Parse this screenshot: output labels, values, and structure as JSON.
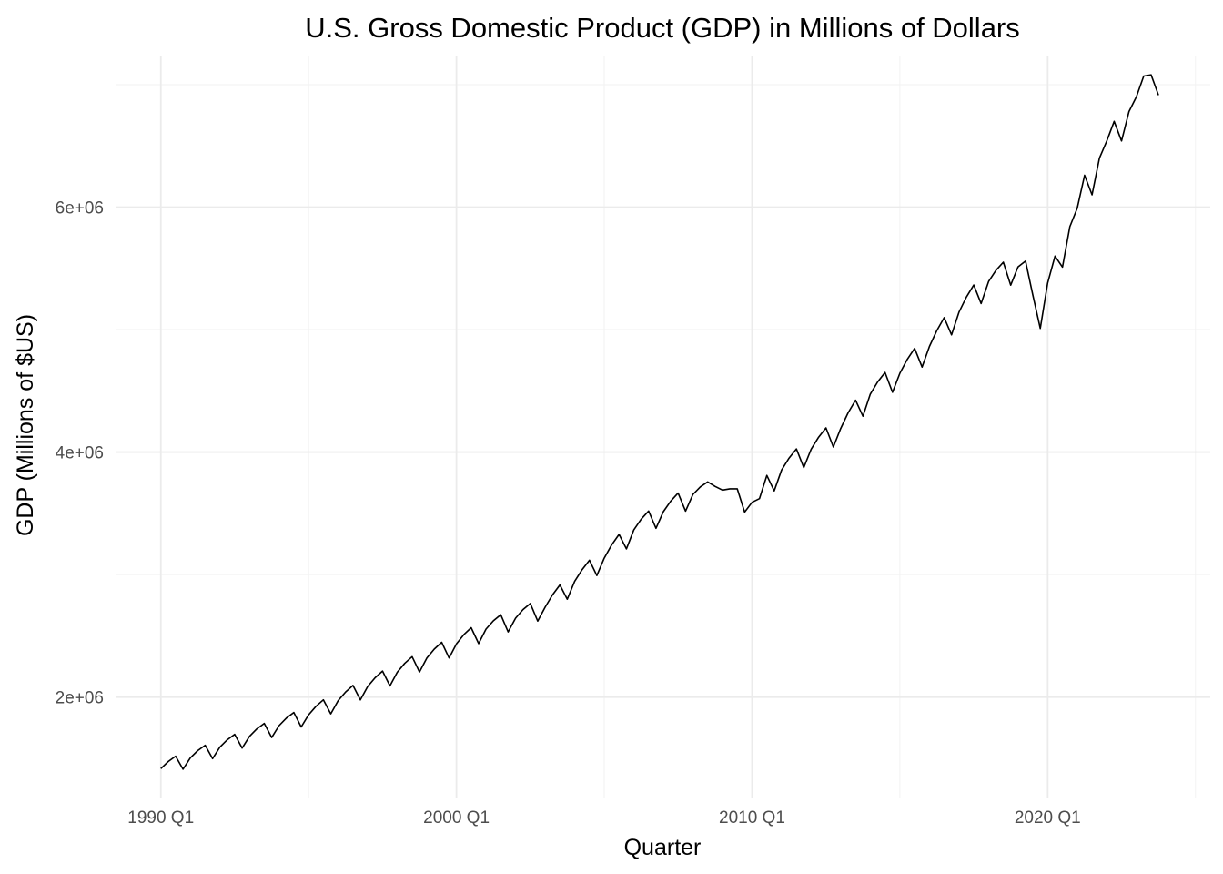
{
  "chart_data": {
    "type": "line",
    "title": "U.S. Gross Domestic Product (GDP) in Millions of Dollars",
    "xlabel": "Quarter",
    "ylabel": "GDP (Millions of $US)",
    "x_ticks": [
      "1990 Q1",
      "2000 Q1",
      "2010 Q1",
      "2020 Q1"
    ],
    "y_ticks": [
      "2e+06",
      "4e+06",
      "6e+06"
    ],
    "grid": true,
    "legend": "none",
    "line_color": "#000000",
    "x_range": [
      "1988 Q3",
      "2025 Q3"
    ],
    "ylim": [
      1180000,
      7230000
    ],
    "x_start": "1990 Q1",
    "x_end": "2023 Q4",
    "y_anchors": [
      [
        0,
        1420000
      ],
      [
        20,
        1860000
      ],
      [
        40,
        2440000
      ],
      [
        44,
        2560000
      ],
      [
        48,
        2650000
      ],
      [
        52,
        2740000
      ],
      [
        56,
        2950000
      ],
      [
        60,
        3140000
      ],
      [
        64,
        3370000
      ],
      [
        68,
        3520000
      ],
      [
        72,
        3660000
      ],
      [
        76,
        3700000
      ],
      [
        80,
        3600000
      ],
      [
        84,
        3860000
      ],
      [
        88,
        4030000
      ],
      [
        92,
        4200000
      ],
      [
        96,
        4480000
      ],
      [
        100,
        4650000
      ],
      [
        104,
        4870000
      ],
      [
        108,
        5150000
      ],
      [
        112,
        5400000
      ],
      [
        116,
        5520000
      ],
      [
        120,
        5700000
      ],
      [
        124,
        6200000
      ],
      [
        128,
        6650000
      ],
      [
        132,
        6850000
      ],
      [
        135,
        7050000
      ]
    ],
    "seasonal_pattern": [
      -6000,
      45000,
      75000,
      -105000
    ],
    "overrides": [
      [
        75,
        3720000
      ],
      [
        76,
        3690000
      ],
      [
        77,
        3700000
      ],
      [
        78,
        3700000
      ],
      [
        79,
        3510000
      ],
      [
        80,
        3590000
      ],
      [
        81,
        3620000
      ],
      [
        117,
        5560000
      ],
      [
        118,
        5280000
      ],
      [
        119,
        5010000
      ],
      [
        120,
        5380000
      ],
      [
        121,
        5600000
      ],
      [
        122,
        5510000
      ],
      [
        123,
        5840000
      ],
      [
        124,
        5990000
      ],
      [
        125,
        6260000
      ],
      [
        126,
        6100000
      ],
      [
        127,
        6400000
      ],
      [
        128,
        6540000
      ],
      [
        129,
        6700000
      ],
      [
        130,
        6540000
      ],
      [
        131,
        6780000
      ],
      [
        132,
        6900000
      ],
      [
        133,
        7070000
      ]
    ]
  }
}
